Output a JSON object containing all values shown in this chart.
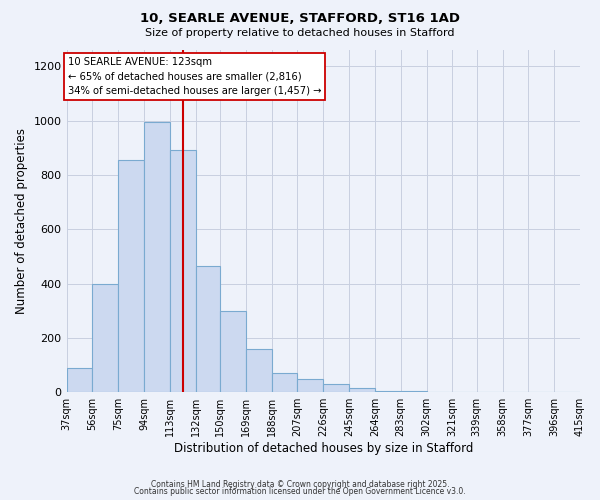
{
  "title": "10, SEARLE AVENUE, STAFFORD, ST16 1AD",
  "subtitle": "Size of property relative to detached houses in Stafford",
  "xlabel": "Distribution of detached houses by size in Stafford",
  "ylabel": "Number of detached properties",
  "bar_values": [
    90,
    400,
    855,
    995,
    890,
    465,
    300,
    160,
    70,
    50,
    30,
    15,
    5,
    3,
    2,
    1,
    0,
    0,
    0,
    0
  ],
  "bin_labels": [
    "37sqm",
    "56sqm",
    "75sqm",
    "94sqm",
    "113sqm",
    "132sqm",
    "150sqm",
    "169sqm",
    "188sqm",
    "207sqm",
    "226sqm",
    "245sqm",
    "264sqm",
    "283sqm",
    "302sqm",
    "321sqm",
    "339sqm",
    "358sqm",
    "377sqm",
    "396sqm",
    "415sqm"
  ],
  "bin_edges": [
    37,
    56,
    75,
    94,
    113,
    132,
    150,
    169,
    188,
    207,
    226,
    245,
    264,
    283,
    302,
    321,
    339,
    358,
    377,
    396,
    415
  ],
  "bar_color": "#ccd9f0",
  "bar_edge_color": "#7aaad0",
  "property_size": 123,
  "vline_color": "#cc0000",
  "annotation_title": "10 SEARLE AVENUE: 123sqm",
  "annotation_line1": "← 65% of detached houses are smaller (2,816)",
  "annotation_line2": "34% of semi-detached houses are larger (1,457) →",
  "annotation_box_color": "#ffffff",
  "annotation_box_edge": "#cc0000",
  "ylim": [
    0,
    1260
  ],
  "yticks": [
    0,
    200,
    400,
    600,
    800,
    1000,
    1200
  ],
  "footer1": "Contains HM Land Registry data © Crown copyright and database right 2025.",
  "footer2": "Contains public sector information licensed under the Open Government Licence v3.0.",
  "background_color": "#eef2fa",
  "grid_color": "#c8cfe0"
}
